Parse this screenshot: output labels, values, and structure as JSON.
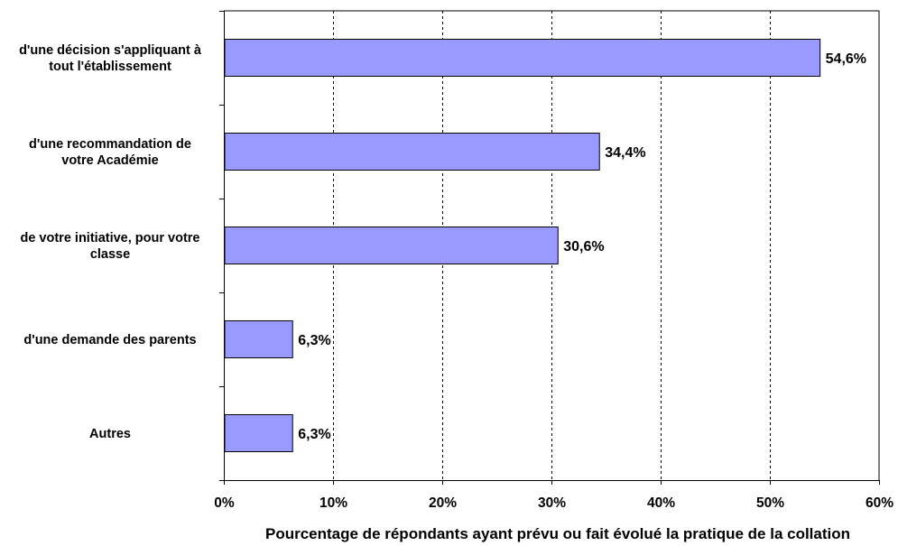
{
  "chart_data": {
    "type": "bar",
    "orientation": "horizontal",
    "categories": [
      [
        "d'une décision s'appliquant à",
        "tout l'établissement"
      ],
      [
        "d'une recommandation de",
        "votre Académie"
      ],
      [
        "de votre initiative, pour votre",
        "classe"
      ],
      [
        "d'une demande des parents"
      ],
      [
        "Autres"
      ]
    ],
    "values": [
      54.6,
      34.4,
      30.6,
      6.3,
      6.3
    ],
    "data_labels": [
      "54,6%",
      "34,4%",
      "30,6%",
      "6,3%",
      "6,3%"
    ],
    "x_ticks": [
      "0%",
      "10%",
      "20%",
      "30%",
      "40%",
      "50%",
      "60%"
    ],
    "xlim": [
      0,
      60
    ],
    "xlabel": "Pourcentage de répondants ayant prévu ou fait évolué la pratique de la collation",
    "ylabel": "",
    "title": "",
    "grid": "vertical dashed",
    "legend": "none",
    "colors": {
      "bar_fill": "#9999FF",
      "bar_stroke": "#000000",
      "grid": "#000000",
      "axis": "#000000"
    }
  }
}
